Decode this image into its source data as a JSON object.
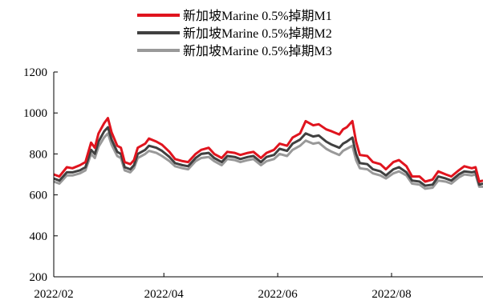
{
  "chart_data": {
    "type": "line",
    "ylim": [
      200,
      1200
    ],
    "yticks": [
      "1200",
      "1000",
      "800",
      "600",
      "400",
      "200"
    ],
    "xticks": [
      "2022/02",
      "2022/04",
      "2022/06",
      "2022/08"
    ],
    "xlim": [
      "2022-02-01",
      "2022-09-19"
    ],
    "legend_position": "top-center",
    "grid": false,
    "series": [
      {
        "name": "新加坡Marine 0.5%掉期M1",
        "color": "#e0141e",
        "points": [
          [
            "2022-02-01",
            700
          ],
          [
            "2022-02-04",
            690
          ],
          [
            "2022-02-08",
            735
          ],
          [
            "2022-02-11",
            730
          ],
          [
            "2022-02-15",
            745
          ],
          [
            "2022-02-18",
            760
          ],
          [
            "2022-02-21",
            855
          ],
          [
            "2022-02-23",
            830
          ],
          [
            "2022-02-25",
            900
          ],
          [
            "2022-02-28",
            950
          ],
          [
            "2022-03-02",
            975
          ],
          [
            "2022-03-04",
            905
          ],
          [
            "2022-03-07",
            840
          ],
          [
            "2022-03-09",
            830
          ],
          [
            "2022-03-11",
            760
          ],
          [
            "2022-03-14",
            750
          ],
          [
            "2022-03-16",
            770
          ],
          [
            "2022-03-18",
            830
          ],
          [
            "2022-03-22",
            850
          ],
          [
            "2022-03-24",
            875
          ],
          [
            "2022-03-28",
            860
          ],
          [
            "2022-03-31",
            845
          ],
          [
            "2022-04-04",
            810
          ],
          [
            "2022-04-07",
            775
          ],
          [
            "2022-04-11",
            765
          ],
          [
            "2022-04-14",
            760
          ],
          [
            "2022-04-18",
            800
          ],
          [
            "2022-04-21",
            820
          ],
          [
            "2022-04-25",
            830
          ],
          [
            "2022-04-28",
            800
          ],
          [
            "2022-05-02",
            780
          ],
          [
            "2022-05-05",
            810
          ],
          [
            "2022-05-09",
            805
          ],
          [
            "2022-05-12",
            795
          ],
          [
            "2022-05-16",
            805
          ],
          [
            "2022-05-19",
            810
          ],
          [
            "2022-05-23",
            780
          ],
          [
            "2022-05-26",
            805
          ],
          [
            "2022-05-30",
            820
          ],
          [
            "2022-06-02",
            850
          ],
          [
            "2022-06-06",
            840
          ],
          [
            "2022-06-09",
            880
          ],
          [
            "2022-06-13",
            900
          ],
          [
            "2022-06-16",
            960
          ],
          [
            "2022-06-20",
            940
          ],
          [
            "2022-06-23",
            945
          ],
          [
            "2022-06-27",
            920
          ],
          [
            "2022-06-30",
            910
          ],
          [
            "2022-07-04",
            895
          ],
          [
            "2022-07-06",
            920
          ],
          [
            "2022-07-08",
            930
          ],
          [
            "2022-07-11",
            960
          ],
          [
            "2022-07-13",
            860
          ],
          [
            "2022-07-15",
            795
          ],
          [
            "2022-07-19",
            790
          ],
          [
            "2022-07-22",
            760
          ],
          [
            "2022-07-26",
            750
          ],
          [
            "2022-07-29",
            725
          ],
          [
            "2022-08-02",
            760
          ],
          [
            "2022-08-05",
            770
          ],
          [
            "2022-08-09",
            740
          ],
          [
            "2022-08-12",
            690
          ],
          [
            "2022-08-16",
            690
          ],
          [
            "2022-08-19",
            665
          ],
          [
            "2022-08-23",
            675
          ],
          [
            "2022-08-26",
            715
          ],
          [
            "2022-08-30",
            700
          ],
          [
            "2022-09-02",
            690
          ],
          [
            "2022-09-06",
            720
          ],
          [
            "2022-09-09",
            740
          ],
          [
            "2022-09-13",
            730
          ],
          [
            "2022-09-15",
            735
          ],
          [
            "2022-09-17",
            665
          ],
          [
            "2022-09-19",
            670
          ]
        ]
      },
      {
        "name": "新加坡Marine 0.5%掉期M2",
        "color": "#404040",
        "points": [
          [
            "2022-02-01",
            680
          ],
          [
            "2022-02-04",
            670
          ],
          [
            "2022-02-08",
            710
          ],
          [
            "2022-02-11",
            710
          ],
          [
            "2022-02-15",
            720
          ],
          [
            "2022-02-18",
            735
          ],
          [
            "2022-02-21",
            820
          ],
          [
            "2022-02-23",
            800
          ],
          [
            "2022-02-25",
            860
          ],
          [
            "2022-02-28",
            910
          ],
          [
            "2022-03-02",
            930
          ],
          [
            "2022-03-04",
            870
          ],
          [
            "2022-03-07",
            810
          ],
          [
            "2022-03-09",
            800
          ],
          [
            "2022-03-11",
            735
          ],
          [
            "2022-03-14",
            725
          ],
          [
            "2022-03-16",
            745
          ],
          [
            "2022-03-18",
            800
          ],
          [
            "2022-03-22",
            820
          ],
          [
            "2022-03-24",
            840
          ],
          [
            "2022-03-28",
            830
          ],
          [
            "2022-03-31",
            815
          ],
          [
            "2022-04-04",
            785
          ],
          [
            "2022-04-07",
            755
          ],
          [
            "2022-04-11",
            745
          ],
          [
            "2022-04-14",
            740
          ],
          [
            "2022-04-18",
            780
          ],
          [
            "2022-04-21",
            800
          ],
          [
            "2022-04-25",
            805
          ],
          [
            "2022-04-28",
            780
          ],
          [
            "2022-05-02",
            760
          ],
          [
            "2022-05-05",
            790
          ],
          [
            "2022-05-09",
            785
          ],
          [
            "2022-05-12",
            775
          ],
          [
            "2022-05-16",
            785
          ],
          [
            "2022-05-19",
            790
          ],
          [
            "2022-05-23",
            760
          ],
          [
            "2022-05-26",
            785
          ],
          [
            "2022-05-30",
            795
          ],
          [
            "2022-06-02",
            825
          ],
          [
            "2022-06-06",
            815
          ],
          [
            "2022-06-09",
            850
          ],
          [
            "2022-06-13",
            870
          ],
          [
            "2022-06-16",
            900
          ],
          [
            "2022-06-20",
            885
          ],
          [
            "2022-06-23",
            890
          ],
          [
            "2022-06-27",
            860
          ],
          [
            "2022-06-30",
            845
          ],
          [
            "2022-07-04",
            830
          ],
          [
            "2022-07-06",
            850
          ],
          [
            "2022-07-08",
            860
          ],
          [
            "2022-07-11",
            880
          ],
          [
            "2022-07-13",
            800
          ],
          [
            "2022-07-15",
            755
          ],
          [
            "2022-07-19",
            750
          ],
          [
            "2022-07-22",
            725
          ],
          [
            "2022-07-26",
            715
          ],
          [
            "2022-07-29",
            695
          ],
          [
            "2022-08-02",
            725
          ],
          [
            "2022-08-05",
            735
          ],
          [
            "2022-08-09",
            710
          ],
          [
            "2022-08-12",
            670
          ],
          [
            "2022-08-16",
            665
          ],
          [
            "2022-08-19",
            645
          ],
          [
            "2022-08-23",
            650
          ],
          [
            "2022-08-26",
            690
          ],
          [
            "2022-08-30",
            680
          ],
          [
            "2022-09-02",
            670
          ],
          [
            "2022-09-06",
            700
          ],
          [
            "2022-09-09",
            715
          ],
          [
            "2022-09-13",
            710
          ],
          [
            "2022-09-15",
            715
          ],
          [
            "2022-09-17",
            650
          ],
          [
            "2022-09-19",
            655
          ]
        ]
      },
      {
        "name": "新加坡Marine 0.5%掉期M3",
        "color": "#999999",
        "points": [
          [
            "2022-02-01",
            665
          ],
          [
            "2022-02-04",
            655
          ],
          [
            "2022-02-08",
            695
          ],
          [
            "2022-02-11",
            695
          ],
          [
            "2022-02-15",
            705
          ],
          [
            "2022-02-18",
            720
          ],
          [
            "2022-02-21",
            800
          ],
          [
            "2022-02-23",
            780
          ],
          [
            "2022-02-25",
            835
          ],
          [
            "2022-02-28",
            880
          ],
          [
            "2022-03-02",
            900
          ],
          [
            "2022-03-04",
            845
          ],
          [
            "2022-03-07",
            790
          ],
          [
            "2022-03-09",
            780
          ],
          [
            "2022-03-11",
            720
          ],
          [
            "2022-03-14",
            710
          ],
          [
            "2022-03-16",
            730
          ],
          [
            "2022-03-18",
            780
          ],
          [
            "2022-03-22",
            800
          ],
          [
            "2022-03-24",
            815
          ],
          [
            "2022-03-28",
            805
          ],
          [
            "2022-03-31",
            790
          ],
          [
            "2022-04-04",
            765
          ],
          [
            "2022-04-07",
            740
          ],
          [
            "2022-04-11",
            730
          ],
          [
            "2022-04-14",
            725
          ],
          [
            "2022-04-18",
            765
          ],
          [
            "2022-04-21",
            780
          ],
          [
            "2022-04-25",
            785
          ],
          [
            "2022-04-28",
            765
          ],
          [
            "2022-05-02",
            745
          ],
          [
            "2022-05-05",
            775
          ],
          [
            "2022-05-09",
            770
          ],
          [
            "2022-05-12",
            760
          ],
          [
            "2022-05-16",
            770
          ],
          [
            "2022-05-19",
            775
          ],
          [
            "2022-05-23",
            745
          ],
          [
            "2022-05-26",
            765
          ],
          [
            "2022-05-30",
            775
          ],
          [
            "2022-06-02",
            800
          ],
          [
            "2022-06-06",
            790
          ],
          [
            "2022-06-09",
            820
          ],
          [
            "2022-06-13",
            840
          ],
          [
            "2022-06-16",
            865
          ],
          [
            "2022-06-20",
            850
          ],
          [
            "2022-06-23",
            855
          ],
          [
            "2022-06-27",
            825
          ],
          [
            "2022-06-30",
            810
          ],
          [
            "2022-07-04",
            795
          ],
          [
            "2022-07-06",
            815
          ],
          [
            "2022-07-08",
            825
          ],
          [
            "2022-07-11",
            840
          ],
          [
            "2022-07-13",
            770
          ],
          [
            "2022-07-15",
            730
          ],
          [
            "2022-07-19",
            725
          ],
          [
            "2022-07-22",
            705
          ],
          [
            "2022-07-26",
            695
          ],
          [
            "2022-07-29",
            680
          ],
          [
            "2022-08-02",
            705
          ],
          [
            "2022-08-05",
            715
          ],
          [
            "2022-08-09",
            695
          ],
          [
            "2022-08-12",
            655
          ],
          [
            "2022-08-16",
            650
          ],
          [
            "2022-08-19",
            630
          ],
          [
            "2022-08-23",
            635
          ],
          [
            "2022-08-26",
            670
          ],
          [
            "2022-08-30",
            665
          ],
          [
            "2022-09-02",
            655
          ],
          [
            "2022-09-06",
            685
          ],
          [
            "2022-09-09",
            700
          ],
          [
            "2022-09-13",
            695
          ],
          [
            "2022-09-15",
            700
          ],
          [
            "2022-09-17",
            640
          ],
          [
            "2022-09-19",
            640
          ]
        ]
      }
    ]
  }
}
